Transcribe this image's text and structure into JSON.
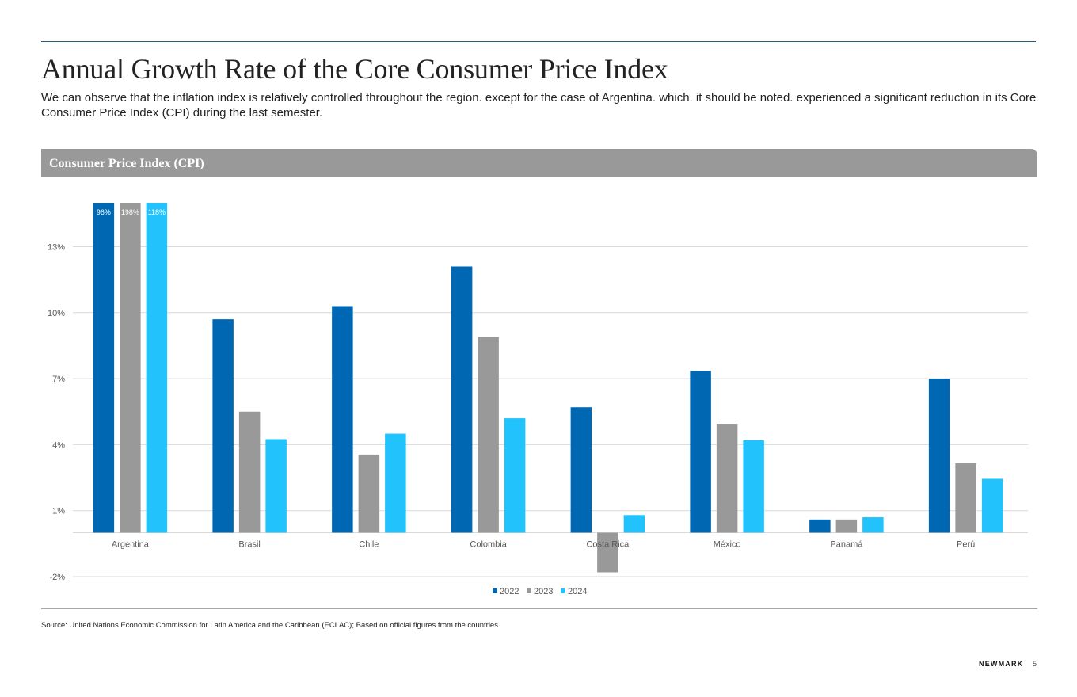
{
  "page": {
    "title": "Annual Growth Rate of the Core Consumer Price Index",
    "intro": "We can observe that the inflation index is relatively controlled throughout the region. except for the case of Argentina. which. it should be noted. experienced a significant reduction in its Core Consumer Price Index (CPI) during the last semester.",
    "panel_title": "Consumer Price Index (CPI)",
    "source_label": "Source:",
    "source_text": "United Nations Economic Commission for Latin America and the Caribbean (ECLAC); Based on official figures from the countries.",
    "brand": "NEWMARK",
    "page_number": "5"
  },
  "colors": {
    "series_2022": "#0068b3",
    "series_2023": "#999999",
    "series_2024": "#22c3fd",
    "header_bar": "#999999",
    "accent_rule": "#1f5f78"
  },
  "chart_data": {
    "type": "bar",
    "title": "Consumer Price Index (CPI)",
    "xlabel": "",
    "ylabel": "",
    "categories": [
      "Argentina",
      "Brasil",
      "Chile",
      "Colombia",
      "Costa Rica",
      "México",
      "Panamá",
      "Perú"
    ],
    "series": [
      {
        "name": "2022",
        "values": [
          96,
          9.7,
          10.3,
          12.1,
          5.7,
          7.35,
          0.6,
          7.0
        ]
      },
      {
        "name": "2023",
        "values": [
          198,
          5.5,
          3.55,
          8.9,
          -1.8,
          4.95,
          0.6,
          3.15
        ]
      },
      {
        "name": "2024",
        "values": [
          118,
          4.25,
          4.5,
          5.2,
          0.8,
          4.2,
          0.7,
          2.45
        ]
      }
    ],
    "clipped_data_labels": [
      {
        "category": "Argentina",
        "series": "2022",
        "label": "96%"
      },
      {
        "category": "Argentina",
        "series": "2023",
        "label": "198%"
      },
      {
        "category": "Argentina",
        "series": "2024",
        "label": "118%"
      }
    ],
    "ylim": [
      -2,
      15
    ],
    "yticks": [
      -2,
      1,
      4,
      7,
      10,
      13
    ],
    "ytick_labels": [
      "-2%",
      "1%",
      "4%",
      "7%",
      "10%",
      "13%"
    ],
    "grid": true,
    "legend": "bottom-center"
  }
}
